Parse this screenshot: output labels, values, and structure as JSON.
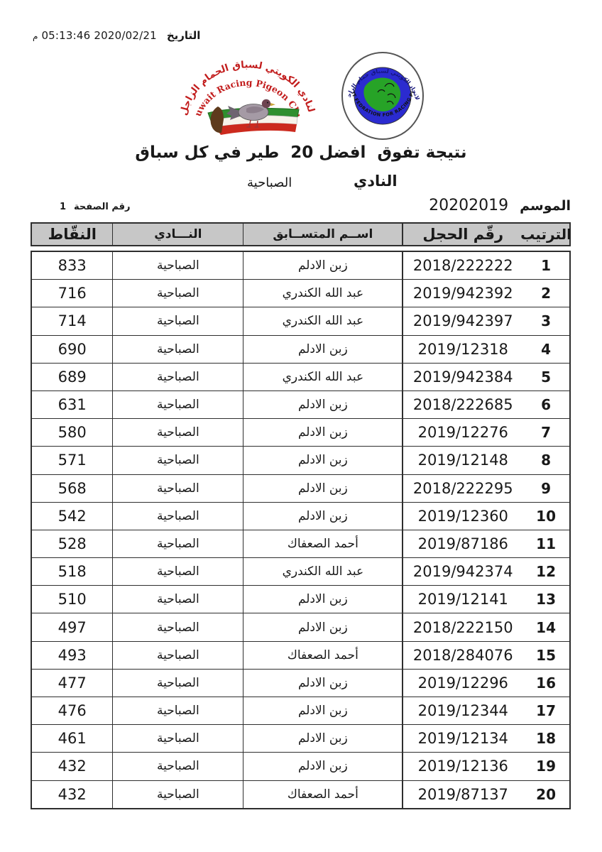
{
  "dateline": {
    "label": "التاريخ",
    "value": "05:13:46 2020/02/21",
    "meridiem": "م"
  },
  "logos": {
    "club": {
      "arabic_arc": "النادي الكويتي لسباق الحمام الزاجل",
      "english_arc": "Kuwait Racing Pigeon Club"
    },
    "federation": {
      "arabic_arc": "الاتحاد الكويتي لسباق حمام الزاجل",
      "english_arc": "KUWAIT FEDRATION FOR RACING PIGEON"
    }
  },
  "title": "نتيجة تفوق  افضل 20  طير في كل سباق",
  "club_line": {
    "label": "النادي",
    "value": "الصباحية"
  },
  "season": {
    "label": "الموسم",
    "value": "20202019"
  },
  "page": {
    "label": "رقم الصفحة",
    "value": "1"
  },
  "table": {
    "headers": {
      "rank": "الترتيب",
      "ring": "رقّم الحجل",
      "name": "اســم المتســابق",
      "club": "النـــادي",
      "points": "النقّاط"
    },
    "rows": [
      {
        "rank": "1",
        "ring": "2018/222222",
        "name": "زبن الادلم",
        "club": "الصباحية",
        "points": "833"
      },
      {
        "rank": "2",
        "ring": "2019/942392",
        "name": "عبد الله الكندري",
        "club": "الصباحية",
        "points": "716"
      },
      {
        "rank": "3",
        "ring": "2019/942397",
        "name": "عبد الله الكندري",
        "club": "الصباحية",
        "points": "714"
      },
      {
        "rank": "4",
        "ring": "2019/12318",
        "name": "زبن الادلم",
        "club": "الصباحية",
        "points": "690"
      },
      {
        "rank": "5",
        "ring": "2019/942384",
        "name": "عبد الله الكندري",
        "club": "الصباحية",
        "points": "689"
      },
      {
        "rank": "6",
        "ring": "2018/222685",
        "name": "زبن الادلم",
        "club": "الصباحية",
        "points": "631"
      },
      {
        "rank": "7",
        "ring": "2019/12276",
        "name": "زبن الادلم",
        "club": "الصباحية",
        "points": "580"
      },
      {
        "rank": "8",
        "ring": "2019/12148",
        "name": "زبن الادلم",
        "club": "الصباحية",
        "points": "571"
      },
      {
        "rank": "9",
        "ring": "2018/222295",
        "name": "زبن الادلم",
        "club": "الصباحية",
        "points": "568"
      },
      {
        "rank": "10",
        "ring": "2019/12360",
        "name": "زبن الادلم",
        "club": "الصباحية",
        "points": "542"
      },
      {
        "rank": "11",
        "ring": "2019/87186",
        "name": "أحمد الصعفاك",
        "club": "الصباحية",
        "points": "528"
      },
      {
        "rank": "12",
        "ring": "2019/942374",
        "name": "عبد الله الكندري",
        "club": "الصباحية",
        "points": "518"
      },
      {
        "rank": "13",
        "ring": "2019/12141",
        "name": "زبن الادلم",
        "club": "الصباحية",
        "points": "510"
      },
      {
        "rank": "14",
        "ring": "2018/222150",
        "name": "زبن الادلم",
        "club": "الصباحية",
        "points": "497"
      },
      {
        "rank": "15",
        "ring": "2018/284076",
        "name": "أحمد الصعفاك",
        "club": "الصباحية",
        "points": "493"
      },
      {
        "rank": "16",
        "ring": "2019/12296",
        "name": "زبن الادلم",
        "club": "الصباحية",
        "points": "477"
      },
      {
        "rank": "17",
        "ring": "2019/12344",
        "name": "زبن الادلم",
        "club": "الصباحية",
        "points": "476"
      },
      {
        "rank": "18",
        "ring": "2019/12134",
        "name": "زبن الادلم",
        "club": "الصباحية",
        "points": "461"
      },
      {
        "rank": "19",
        "ring": "2019/12136",
        "name": "زبن الادلم",
        "club": "الصباحية",
        "points": "432"
      },
      {
        "rank": "20",
        "ring": "2019/87137",
        "name": "أحمد الصعفاك",
        "club": "الصباحية",
        "points": "432"
      }
    ]
  },
  "colors": {
    "header_bg": "#c7c7c7",
    "border": "#2e2e2e",
    "logo_red": "#c21d1d",
    "logo_green": "#2f8f2f",
    "logo_blue": "#2b2bd0",
    "logo_brown": "#5e3a1c"
  }
}
